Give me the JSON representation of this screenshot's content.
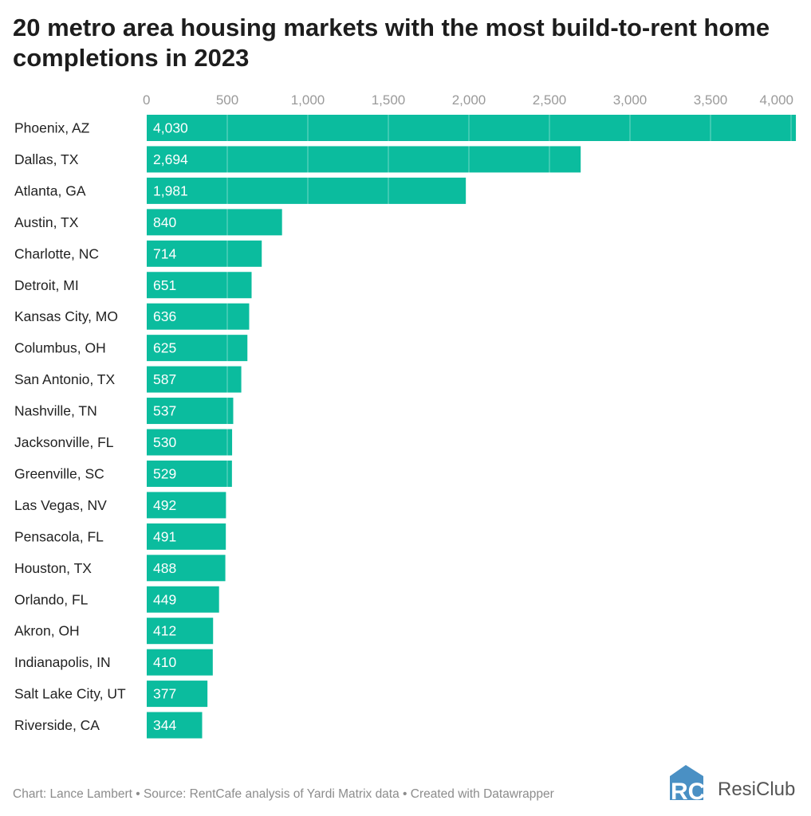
{
  "chart_data": {
    "type": "bar",
    "orientation": "horizontal",
    "title": "20 metro area housing markets with the most build-to-rent home completions in 2023",
    "categories": [
      "Phoenix, AZ",
      "Dallas, TX",
      "Atlanta, GA",
      "Austin, TX",
      "Charlotte, NC",
      "Detroit, MI",
      "Kansas City, MO",
      "Columbus, OH",
      "San Antonio, TX",
      "Nashville, TN",
      "Jacksonville, FL",
      "Greenville, SC",
      "Las Vegas, NV",
      "Pensacola, FL",
      "Houston, TX",
      "Orlando, FL",
      "Akron, OH",
      "Indianapolis, IN",
      "Salt Lake City, UT",
      "Riverside, CA"
    ],
    "values": [
      4030,
      2694,
      1981,
      840,
      714,
      651,
      636,
      625,
      587,
      537,
      530,
      529,
      492,
      491,
      488,
      449,
      412,
      410,
      377,
      344
    ],
    "value_labels": [
      "4,030",
      "2,694",
      "1,981",
      "840",
      "714",
      "651",
      "636",
      "625",
      "587",
      "537",
      "530",
      "529",
      "492",
      "491",
      "488",
      "449",
      "412",
      "410",
      "377",
      "344"
    ],
    "xticks": [
      0,
      500,
      1000,
      1500,
      2000,
      2500,
      3000,
      3500,
      4000
    ],
    "xtick_labels": [
      "0",
      "500",
      "1,000",
      "1,500",
      "2,000",
      "2,500",
      "3,000",
      "3,500",
      "4,000"
    ],
    "xlim": [
      0,
      4030
    ],
    "axis_position": "top",
    "grid": true,
    "bar_color": "#0bbc9e"
  },
  "footer": "Chart: Lance Lambert • Source: RentCafe analysis of Yardi Matrix data • Created with Datawrapper",
  "logo": {
    "text": "ResiClub",
    "mark": "RC",
    "color": "#4a90c4"
  }
}
